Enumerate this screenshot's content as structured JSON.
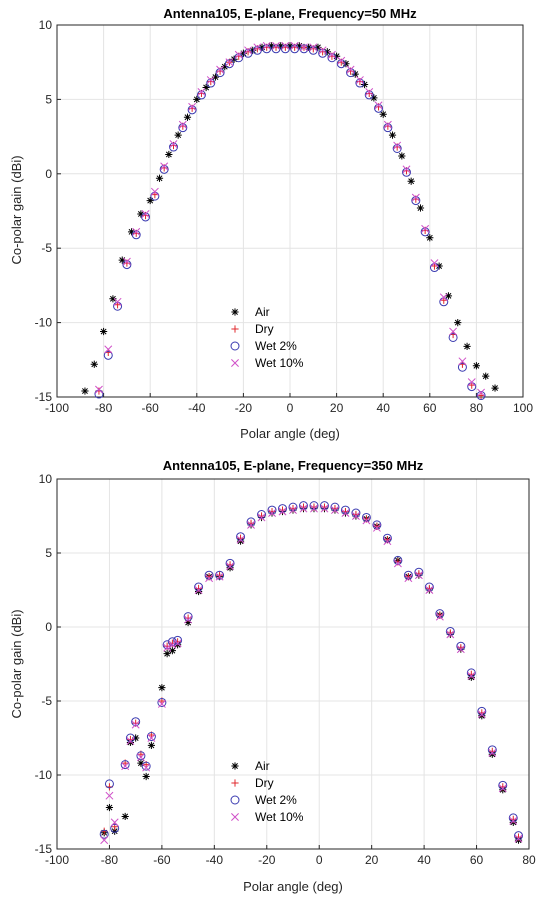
{
  "colors": {
    "Air": "#000000",
    "Dry": "#e0282e",
    "Wet 2%": "#3a3ab0",
    "Wet 10%": "#d050c8"
  },
  "chart_data": [
    {
      "type": "scatter",
      "title": "Antenna105, E-plane, Frequency=50 MHz",
      "xlabel": "Polar angle (deg)",
      "ylabel": "Co-polar gain (dBi)",
      "xlim": [
        -100,
        100
      ],
      "ylim": [
        -15,
        10
      ],
      "xticks": [
        "-100",
        "-80",
        "-60",
        "-40",
        "-20",
        "0",
        "20",
        "40",
        "60",
        "80",
        "100"
      ],
      "yticks": [
        "-15",
        "-10",
        "-5",
        "0",
        "5",
        "10"
      ],
      "grid": true,
      "legend_position": "bottom-center",
      "legend": [
        "Air",
        "Dry",
        "Wet 2%",
        "Wet 10%"
      ],
      "series": [
        {
          "name": "Air",
          "marker": "asterisk",
          "x": [
            -88,
            -84,
            -80,
            -76,
            -72,
            -68,
            -64,
            -60,
            -56,
            -52,
            -48,
            -44,
            -40,
            -36,
            -32,
            -28,
            -24,
            -20,
            -16,
            -12,
            -8,
            -4,
            0,
            4,
            8,
            12,
            16,
            20,
            24,
            28,
            32,
            36,
            40,
            44,
            48,
            52,
            56,
            60,
            64,
            68,
            72,
            76,
            80,
            84,
            88
          ],
          "y": [
            -14.6,
            -12.8,
            -10.6,
            -8.4,
            -5.8,
            -3.9,
            -2.7,
            -1.8,
            -0.3,
            1.3,
            2.6,
            3.8,
            5.0,
            5.8,
            6.5,
            7.2,
            7.7,
            8.1,
            8.3,
            8.5,
            8.6,
            8.6,
            8.6,
            8.6,
            8.5,
            8.5,
            8.2,
            7.9,
            7.4,
            6.7,
            6.0,
            5.1,
            4.0,
            2.6,
            1.2,
            -0.5,
            -2.3,
            -4.3,
            -6.2,
            -8.2,
            -10.0,
            -11.6,
            -12.9,
            -13.6,
            -14.4
          ]
        },
        {
          "name": "Dry",
          "marker": "plus",
          "x": [
            -82,
            -78,
            -74,
            -70,
            -66,
            -62,
            -58,
            -54,
            -50,
            -46,
            -42,
            -38,
            -34,
            -30,
            -26,
            -22,
            -18,
            -14,
            -10,
            -6,
            -2,
            2,
            6,
            10,
            14,
            18,
            22,
            26,
            30,
            34,
            38,
            42,
            46,
            50,
            54,
            58,
            62,
            66,
            70,
            74,
            78,
            82
          ],
          "y": [
            -14.6,
            -12.0,
            -8.8,
            -6.0,
            -4.0,
            -2.8,
            -1.4,
            0.4,
            1.9,
            3.2,
            4.4,
            5.4,
            6.2,
            6.9,
            7.5,
            7.9,
            8.2,
            8.4,
            8.5,
            8.5,
            8.5,
            8.5,
            8.5,
            8.4,
            8.2,
            7.9,
            7.5,
            6.9,
            6.2,
            5.4,
            4.5,
            3.2,
            1.8,
            0.2,
            -1.7,
            -3.8,
            -6.2,
            -8.5,
            -10.8,
            -12.8,
            -14.2,
            -14.9
          ]
        },
        {
          "name": "Wet 2%",
          "marker": "circle",
          "x": [
            -82,
            -78,
            -74,
            -70,
            -66,
            -62,
            -58,
            -54,
            -50,
            -46,
            -42,
            -38,
            -34,
            -30,
            -26,
            -22,
            -18,
            -14,
            -10,
            -6,
            -2,
            2,
            6,
            10,
            14,
            18,
            22,
            26,
            30,
            34,
            38,
            42,
            46,
            50,
            54,
            58,
            62,
            66,
            70,
            74,
            78,
            82
          ],
          "y": [
            -14.8,
            -12.2,
            -8.9,
            -6.1,
            -4.1,
            -2.9,
            -1.5,
            0.3,
            1.8,
            3.1,
            4.3,
            5.3,
            6.1,
            6.8,
            7.4,
            7.8,
            8.1,
            8.3,
            8.4,
            8.4,
            8.4,
            8.4,
            8.4,
            8.3,
            8.1,
            7.8,
            7.4,
            6.8,
            6.1,
            5.3,
            4.4,
            3.1,
            1.7,
            0.1,
            -1.8,
            -3.9,
            -6.3,
            -8.6,
            -11.0,
            -13.0,
            -14.3,
            -14.9
          ]
        },
        {
          "name": "Wet 10%",
          "marker": "x",
          "x": [
            -82,
            -78,
            -74,
            -70,
            -66,
            -62,
            -58,
            -54,
            -50,
            -46,
            -42,
            -38,
            -34,
            -30,
            -26,
            -22,
            -18,
            -14,
            -10,
            -6,
            -2,
            2,
            6,
            10,
            14,
            18,
            22,
            26,
            30,
            34,
            38,
            42,
            46,
            50,
            54,
            58,
            62,
            66,
            70,
            74,
            78,
            82
          ],
          "y": [
            -14.5,
            -11.8,
            -8.6,
            -5.9,
            -3.9,
            -2.7,
            -1.2,
            0.5,
            2.0,
            3.3,
            4.5,
            5.5,
            6.3,
            7.0,
            7.5,
            8.0,
            8.3,
            8.5,
            8.6,
            8.6,
            8.6,
            8.6,
            8.5,
            8.5,
            8.3,
            8.0,
            7.6,
            7.0,
            6.3,
            5.5,
            4.6,
            3.3,
            1.9,
            0.3,
            -1.6,
            -3.7,
            -6.0,
            -8.3,
            -10.6,
            -12.6,
            -14.0,
            -14.7
          ]
        }
      ]
    },
    {
      "type": "scatter",
      "title": "Antenna105, E-plane, Frequency=350 MHz",
      "xlabel": "Polar angle (deg)",
      "ylabel": "Co-polar gain (dBi)",
      "xlim": [
        -100,
        80
      ],
      "ylim": [
        -15,
        10
      ],
      "xticks": [
        "-100",
        "-80",
        "-60",
        "-40",
        "-20",
        "0",
        "20",
        "40",
        "60",
        "80"
      ],
      "yticks": [
        "-15",
        "-10",
        "-5",
        "0",
        "5",
        "10"
      ],
      "grid": true,
      "legend_position": "bottom-center",
      "legend": [
        "Air",
        "Dry",
        "Wet 2%",
        "Wet 10%"
      ],
      "series": [
        {
          "name": "Air",
          "marker": "asterisk",
          "x": [
            -82,
            -80,
            -78,
            -74,
            -72,
            -70,
            -68,
            -66,
            -64,
            -60,
            -58,
            -56,
            -54,
            -50,
            -46,
            -42,
            -38,
            -34,
            -30,
            -26,
            -22,
            -18,
            -14,
            -10,
            -6,
            -2,
            2,
            6,
            10,
            14,
            18,
            22,
            26,
            30,
            34,
            38,
            42,
            46,
            50,
            54,
            58,
            62,
            66,
            70,
            74,
            76
          ],
          "y": [
            -13.9,
            -12.2,
            -13.8,
            -12.8,
            -7.8,
            -7.5,
            -9.2,
            -10.1,
            -8.0,
            -4.1,
            -1.8,
            -1.6,
            -1.2,
            0.3,
            2.4,
            3.4,
            3.4,
            4.0,
            5.8,
            6.9,
            7.4,
            7.7,
            7.8,
            7.9,
            8.0,
            8.0,
            8.0,
            7.9,
            7.7,
            7.5,
            7.3,
            6.8,
            5.9,
            4.5,
            3.4,
            3.5,
            2.5,
            0.8,
            -0.5,
            -1.5,
            -3.4,
            -6.0,
            -8.6,
            -11.0,
            -13.2,
            -14.4
          ]
        },
        {
          "name": "Dry",
          "marker": "plus",
          "x": [
            -82,
            -80,
            -78,
            -74,
            -72,
            -70,
            -68,
            -66,
            -64,
            -60,
            -58,
            -56,
            -54,
            -50,
            -46,
            -42,
            -38,
            -34,
            -30,
            -26,
            -22,
            -18,
            -14,
            -10,
            -6,
            -2,
            2,
            6,
            10,
            14,
            18,
            22,
            26,
            30,
            34,
            38,
            42,
            46,
            50,
            54,
            58,
            62,
            66,
            70,
            74,
            76
          ],
          "y": [
            -13.8,
            -10.8,
            -13.5,
            -9.2,
            -7.6,
            -6.5,
            -8.6,
            -9.3,
            -7.3,
            -5.0,
            -1.3,
            -1.1,
            -1.0,
            0.6,
            2.6,
            3.4,
            3.5,
            4.2,
            6.0,
            7.0,
            7.5,
            7.8,
            7.9,
            8.0,
            8.1,
            8.1,
            8.1,
            8.0,
            7.8,
            7.6,
            7.3,
            6.8,
            5.9,
            4.4,
            3.4,
            3.6,
            2.6,
            0.8,
            -0.4,
            -1.4,
            -3.2,
            -5.8,
            -8.4,
            -10.8,
            -13.0,
            -14.2
          ]
        },
        {
          "name": "Wet 2%",
          "marker": "circle",
          "x": [
            -82,
            -80,
            -78,
            -74,
            -72,
            -70,
            -68,
            -66,
            -64,
            -60,
            -58,
            -56,
            -54,
            -50,
            -46,
            -42,
            -38,
            -34,
            -30,
            -26,
            -22,
            -18,
            -14,
            -10,
            -6,
            -2,
            2,
            6,
            10,
            14,
            18,
            22,
            26,
            30,
            34,
            38,
            42,
            46,
            50,
            54,
            58,
            62,
            66,
            70,
            74,
            76
          ],
          "y": [
            -14.0,
            -10.6,
            -13.6,
            -9.3,
            -7.5,
            -6.4,
            -8.7,
            -9.4,
            -7.4,
            -5.1,
            -1.2,
            -1.0,
            -0.9,
            0.7,
            2.7,
            3.5,
            3.5,
            4.3,
            6.1,
            7.1,
            7.6,
            7.9,
            8.0,
            8.1,
            8.2,
            8.2,
            8.2,
            8.1,
            7.9,
            7.7,
            7.4,
            6.9,
            6.0,
            4.5,
            3.5,
            3.7,
            2.7,
            0.9,
            -0.3,
            -1.3,
            -3.1,
            -5.7,
            -8.3,
            -10.7,
            -12.9,
            -14.1
          ]
        },
        {
          "name": "Wet 10%",
          "marker": "x",
          "x": [
            -82,
            -80,
            -78,
            -74,
            -72,
            -70,
            -68,
            -66,
            -64,
            -60,
            -58,
            -56,
            -54,
            -50,
            -46,
            -42,
            -38,
            -34,
            -30,
            -26,
            -22,
            -18,
            -14,
            -10,
            -6,
            -2,
            2,
            6,
            10,
            14,
            18,
            22,
            26,
            30,
            34,
            38,
            42,
            46,
            50,
            54,
            58,
            62,
            66,
            70,
            74,
            76
          ],
          "y": [
            -14.4,
            -11.4,
            -13.2,
            -9.4,
            -7.7,
            -6.6,
            -8.8,
            -9.5,
            -7.5,
            -5.2,
            -1.4,
            -1.2,
            -1.1,
            0.5,
            2.5,
            3.3,
            3.4,
            4.1,
            5.9,
            6.9,
            7.4,
            7.7,
            7.8,
            7.9,
            8.0,
            8.0,
            8.0,
            7.9,
            7.7,
            7.5,
            7.2,
            6.7,
            5.8,
            4.3,
            3.3,
            3.5,
            2.5,
            0.7,
            -0.5,
            -1.5,
            -3.3,
            -5.9,
            -8.5,
            -10.9,
            -13.1,
            -14.3
          ]
        }
      ]
    }
  ]
}
